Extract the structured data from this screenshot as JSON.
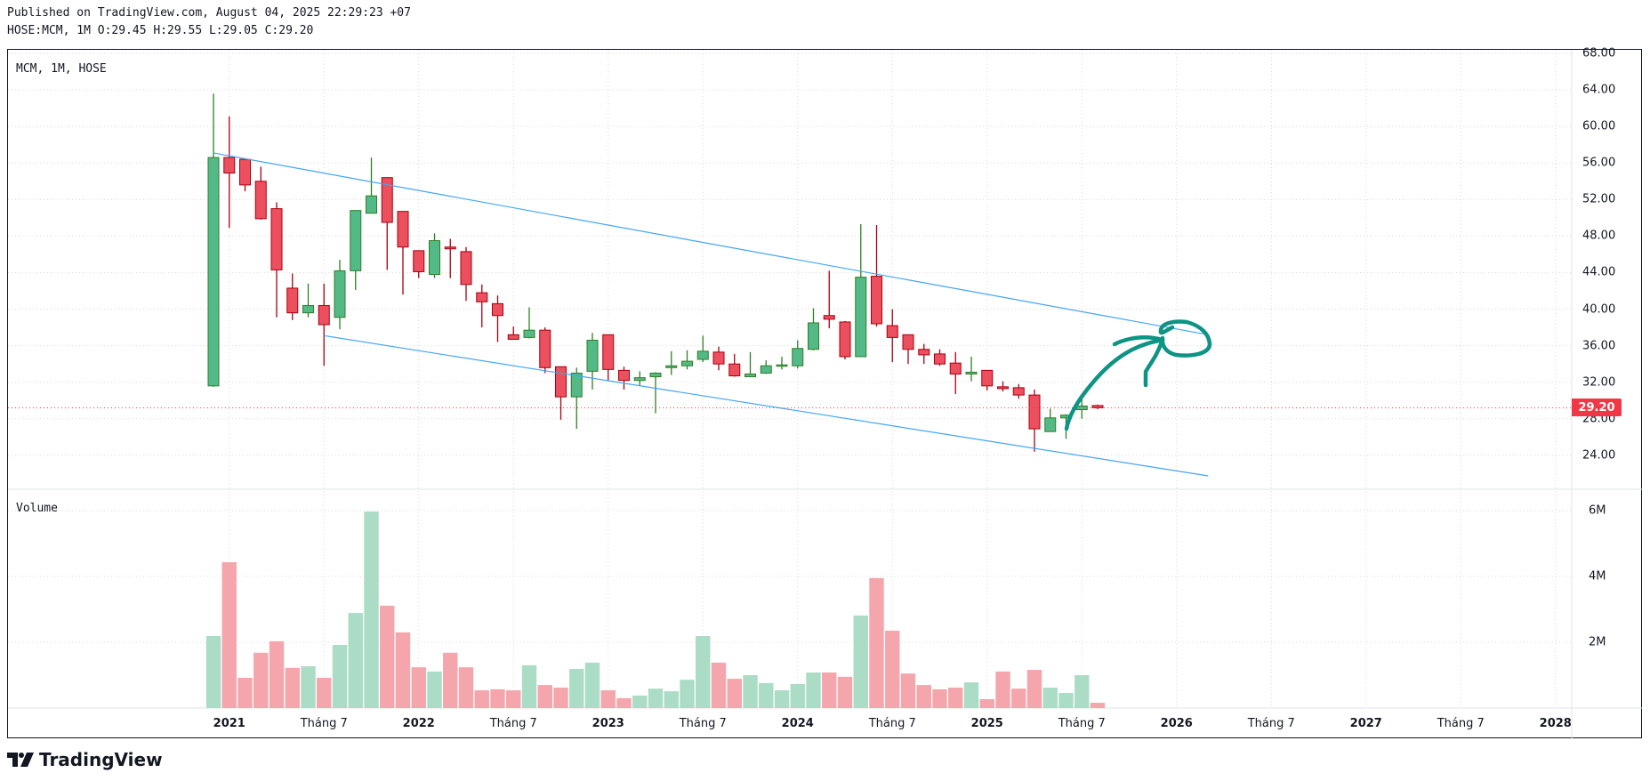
{
  "header": {
    "published": "Published on TradingView.com, August 04, 2025 22:29:23 +07",
    "ohlc_line": "HOSE:MCM, 1M O:29.45 H:29.55 L:29.05 C:29.20"
  },
  "legend": {
    "symbol": "MCM, 1M, HOSE",
    "volume": "Volume"
  },
  "logo": {
    "text": "TradingView"
  },
  "colors": {
    "up_body": "#53b987",
    "up_border": "#2f7f24",
    "down_body": "#ec4f5e",
    "down_border": "#a8000f",
    "vol_up": "#abdcc5",
    "vol_down": "#f4a6ac",
    "channel": "#42a5f5",
    "drawing": "#0e9384",
    "last_price": "#f23645"
  },
  "chart_data": {
    "type": "candlestick",
    "title": "MCM, 1M, HOSE",
    "symbol": "HOSE:MCM",
    "interval": "1M",
    "first_month": "2020-12",
    "ylim": [
      24,
      68
    ],
    "price_ticks": [
      "68.00",
      "64.00",
      "60.00",
      "56.00",
      "52.00",
      "48.00",
      "44.00",
      "40.00",
      "36.00",
      "32.00",
      "28.00",
      "24.00"
    ],
    "last_price": "29.20",
    "volume_ticks": [
      "6M",
      "4M",
      "2M"
    ],
    "volume_unit": "M",
    "time_labels": [
      {
        "i": 1,
        "label": "2021",
        "year": true
      },
      {
        "i": 7,
        "label": "Tháng 7",
        "year": false
      },
      {
        "i": 13,
        "label": "2022",
        "year": true
      },
      {
        "i": 19,
        "label": "Tháng 7",
        "year": false
      },
      {
        "i": 25,
        "label": "2023",
        "year": true
      },
      {
        "i": 31,
        "label": "Tháng 7",
        "year": false
      },
      {
        "i": 37,
        "label": "2024",
        "year": true
      },
      {
        "i": 43,
        "label": "Tháng 7",
        "year": false
      },
      {
        "i": 49,
        "label": "2025",
        "year": true
      },
      {
        "i": 55,
        "label": "Tháng 7",
        "year": false
      },
      {
        "i": 61,
        "label": "2026",
        "year": true
      },
      {
        "i": 67,
        "label": "Tháng 7",
        "year": false
      },
      {
        "i": 73,
        "label": "2027",
        "year": true
      },
      {
        "i": 79,
        "label": "Tháng 7",
        "year": false
      },
      {
        "i": 85,
        "label": "2028",
        "year": true
      }
    ],
    "candles_fields": [
      "open",
      "high",
      "low",
      "close",
      "volume_M"
    ],
    "candles": [
      [
        31.6,
        63.6,
        31.5,
        56.6,
        2.19
      ],
      [
        56.6,
        61.1,
        48.9,
        54.9,
        4.43
      ],
      [
        56.4,
        56.5,
        52.9,
        53.6,
        0.92
      ],
      [
        54.0,
        55.6,
        49.8,
        49.9,
        1.68
      ],
      [
        51.0,
        51.7,
        39.1,
        44.3,
        2.03
      ],
      [
        42.3,
        43.9,
        38.8,
        39.6,
        1.22
      ],
      [
        39.6,
        42.8,
        39.1,
        40.4,
        1.27
      ],
      [
        40.4,
        42.8,
        33.8,
        38.3,
        0.92
      ],
      [
        39.1,
        45.4,
        37.8,
        44.2,
        1.92
      ],
      [
        44.2,
        50.8,
        42.1,
        50.8,
        2.89
      ],
      [
        50.5,
        56.6,
        50.5,
        52.4,
        5.97
      ],
      [
        54.4,
        54.4,
        44.3,
        49.5,
        3.11
      ],
      [
        50.7,
        50.7,
        41.6,
        46.8,
        2.3
      ],
      [
        46.4,
        46.4,
        43.4,
        44.1,
        1.24
      ],
      [
        43.8,
        48.3,
        43.4,
        47.5,
        1.11
      ],
      [
        46.8,
        47.7,
        43.4,
        46.6,
        1.68
      ],
      [
        46.3,
        46.8,
        40.9,
        42.7,
        1.24
      ],
      [
        41.8,
        42.7,
        38.0,
        40.8,
        0.54
      ],
      [
        40.6,
        41.5,
        36.4,
        39.3,
        0.57
      ],
      [
        37.2,
        38.1,
        36.7,
        36.7,
        0.54
      ],
      [
        36.9,
        40.2,
        36.8,
        37.7,
        1.3
      ],
      [
        37.7,
        38.0,
        33.0,
        33.6,
        0.7
      ],
      [
        33.7,
        33.7,
        27.9,
        30.4,
        0.62
      ],
      [
        30.4,
        33.6,
        26.9,
        33.0,
        1.19
      ],
      [
        33.2,
        37.4,
        31.2,
        36.6,
        1.38
      ],
      [
        37.2,
        37.2,
        32.2,
        33.4,
        0.54
      ],
      [
        33.3,
        33.7,
        31.2,
        32.2,
        0.3
      ],
      [
        32.2,
        33.2,
        31.6,
        32.5,
        0.38
      ],
      [
        32.6,
        33.1,
        28.6,
        33.0,
        0.59
      ],
      [
        33.6,
        35.4,
        32.8,
        33.8,
        0.51
      ],
      [
        33.8,
        35.5,
        33.4,
        34.3,
        0.86
      ],
      [
        34.5,
        37.1,
        34.2,
        35.4,
        2.19
      ],
      [
        35.3,
        35.9,
        33.3,
        34.0,
        1.38
      ],
      [
        34.0,
        35.1,
        32.6,
        32.7,
        0.89
      ],
      [
        32.6,
        35.3,
        32.6,
        32.9,
        1.0
      ],
      [
        33.0,
        34.4,
        32.9,
        33.8,
        0.76
      ],
      [
        33.8,
        34.8,
        33.4,
        33.9,
        0.54
      ],
      [
        33.8,
        36.6,
        33.5,
        35.7,
        0.73
      ],
      [
        35.6,
        40.1,
        35.5,
        38.5,
        1.08
      ],
      [
        39.3,
        44.2,
        37.9,
        38.9,
        1.08
      ],
      [
        38.6,
        38.7,
        34.5,
        34.8,
        0.95
      ],
      [
        34.8,
        49.3,
        34.8,
        43.5,
        2.81
      ],
      [
        43.6,
        49.2,
        38.1,
        38.4,
        3.95
      ],
      [
        38.2,
        40.0,
        34.2,
        36.9,
        2.35
      ],
      [
        37.2,
        37.2,
        34.0,
        35.6,
        1.05
      ],
      [
        35.6,
        36.2,
        34.0,
        35.0,
        0.7
      ],
      [
        35.1,
        35.6,
        33.8,
        34.0,
        0.57
      ],
      [
        34.1,
        35.3,
        30.7,
        32.9,
        0.62
      ],
      [
        32.9,
        34.8,
        32.1,
        33.1,
        0.78
      ],
      [
        33.3,
        33.3,
        31.1,
        31.6,
        0.27
      ],
      [
        31.5,
        32.1,
        31.0,
        31.3,
        1.11
      ],
      [
        31.4,
        31.8,
        30.2,
        30.6,
        0.59
      ],
      [
        30.6,
        31.2,
        24.4,
        26.9,
        1.16
      ],
      [
        26.6,
        29.1,
        26.6,
        28.1,
        0.62
      ],
      [
        28.1,
        28.5,
        25.8,
        28.4,
        0.46
      ],
      [
        29.0,
        30.7,
        28.0,
        29.4,
        1.0
      ],
      [
        29.45,
        29.55,
        29.05,
        29.2,
        0.16
      ]
    ],
    "trendlines": [
      {
        "name": "channel-upper",
        "from": {
          "i": 0,
          "price": 57.1
        },
        "to": {
          "i": 63,
          "price": 37.2
        }
      },
      {
        "name": "channel-lower",
        "from": {
          "i": 7,
          "price": 37.1
        },
        "to": {
          "i": 63,
          "price": 21.75
        }
      }
    ]
  }
}
